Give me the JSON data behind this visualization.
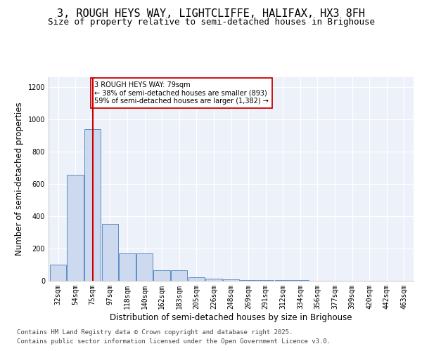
{
  "title": "3, ROUGH HEYS WAY, LIGHTCLIFFE, HALIFAX, HX3 8FH",
  "subtitle": "Size of property relative to semi-detached houses in Brighouse",
  "xlabel": "Distribution of semi-detached houses by size in Brighouse",
  "ylabel": "Number of semi-detached properties",
  "bins": [
    "32sqm",
    "54sqm",
    "75sqm",
    "97sqm",
    "118sqm",
    "140sqm",
    "162sqm",
    "183sqm",
    "205sqm",
    "226sqm",
    "248sqm",
    "269sqm",
    "291sqm",
    "312sqm",
    "334sqm",
    "356sqm",
    "377sqm",
    "399sqm",
    "420sqm",
    "442sqm",
    "463sqm"
  ],
  "values": [
    100,
    655,
    940,
    350,
    170,
    170,
    65,
    65,
    20,
    12,
    8,
    5,
    5,
    5,
    3,
    2,
    2,
    2,
    1,
    1,
    1
  ],
  "bar_color": "#ccd9ee",
  "bar_edge_color": "#5b8ec4",
  "red_line_x": 2.0,
  "red_line_color": "#cc0000",
  "annotation_text": "3 ROUGH HEYS WAY: 79sqm\n← 38% of semi-detached houses are smaller (893)\n59% of semi-detached houses are larger (1,382) →",
  "annotation_box_color": "#ffffff",
  "annotation_box_edge": "#cc0000",
  "ylim": [
    0,
    1260
  ],
  "yticks": [
    0,
    200,
    400,
    600,
    800,
    1000,
    1200
  ],
  "background_color": "#edf1f9",
  "footer_line1": "Contains HM Land Registry data © Crown copyright and database right 2025.",
  "footer_line2": "Contains public sector information licensed under the Open Government Licence v3.0.",
  "title_fontsize": 11,
  "subtitle_fontsize": 9,
  "tick_fontsize": 7,
  "label_fontsize": 8.5,
  "footer_fontsize": 6.5
}
